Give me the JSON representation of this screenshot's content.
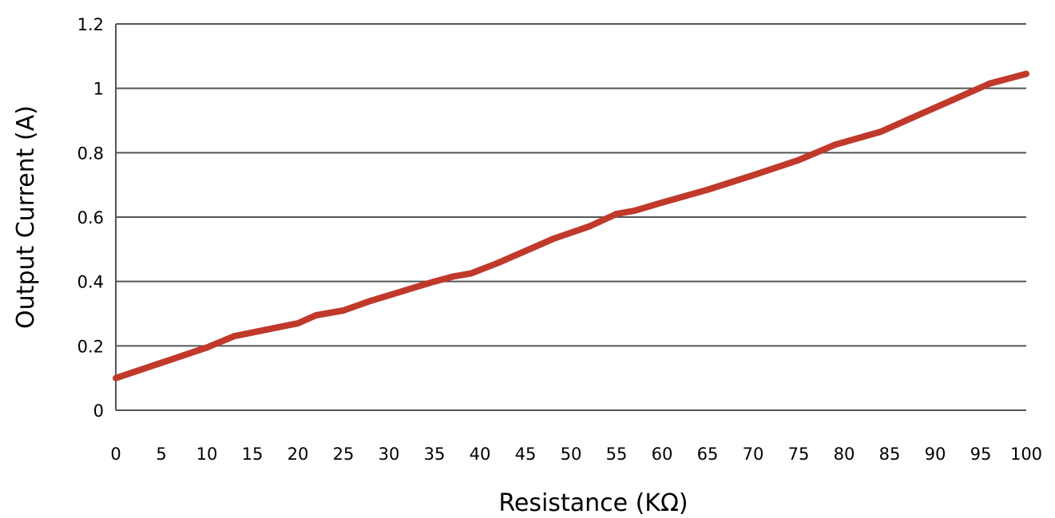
{
  "chart_data": {
    "type": "line",
    "xlabel": "Resistance (KΩ)",
    "ylabel": "Output Current (A)",
    "xlim": [
      0,
      100
    ],
    "ylim": [
      0,
      1.2
    ],
    "x_ticks": [
      "0",
      "5",
      "10",
      "15",
      "20",
      "25",
      "30",
      "35",
      "40",
      "45",
      "50",
      "55",
      "60",
      "65",
      "70",
      "75",
      "80",
      "85",
      "90",
      "95",
      "100"
    ],
    "y_ticks": [
      "0",
      "0.2",
      "0.4",
      "0.6",
      "0.8",
      "1",
      "1.2"
    ],
    "grid": true,
    "series": [
      {
        "color": "#c0392b",
        "x": [
          0,
          10,
          13,
          20,
          22,
          25,
          28,
          35,
          37,
          39,
          42,
          45,
          48,
          52,
          55,
          57,
          60,
          65,
          70,
          75,
          79,
          84,
          88,
          92,
          96,
          100
        ],
        "y": [
          0.1,
          0.195,
          0.23,
          0.27,
          0.295,
          0.31,
          0.34,
          0.4,
          0.415,
          0.425,
          0.458,
          0.495,
          0.532,
          0.571,
          0.61,
          0.62,
          0.645,
          0.685,
          0.73,
          0.777,
          0.825,
          0.865,
          0.915,
          0.965,
          1.015,
          1.045
        ]
      }
    ]
  }
}
